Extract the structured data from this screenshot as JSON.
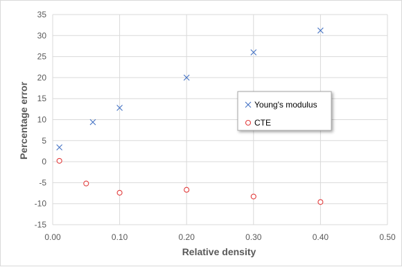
{
  "chart_data": {
    "type": "scatter",
    "xlabel": "Relative density",
    "ylabel": "Percentage error",
    "xlim": [
      0.0,
      0.5
    ],
    "ylim": [
      -15,
      35
    ],
    "x_ticks": [
      0.0,
      0.1,
      0.2,
      0.3,
      0.4,
      0.5
    ],
    "x_tick_labels": [
      "0.00",
      "0.10",
      "0.20",
      "0.30",
      "0.40",
      "0.50"
    ],
    "y_ticks": [
      -15,
      -10,
      -5,
      0,
      5,
      10,
      15,
      20,
      25,
      30,
      35
    ],
    "y_tick_labels": [
      "-15",
      "-10",
      "-5",
      "0",
      "5",
      "10",
      "15",
      "20",
      "25",
      "30",
      "35"
    ],
    "grid": true,
    "legend_position": "right",
    "series": [
      {
        "name": "Young's modulus",
        "marker": "x",
        "color": "#4472c4",
        "x": [
          0.01,
          0.06,
          0.1,
          0.2,
          0.3,
          0.4
        ],
        "y": [
          3.4,
          9.4,
          12.8,
          20.0,
          26.0,
          31.2
        ]
      },
      {
        "name": "CTE",
        "marker": "circle",
        "color": "#e23d3d",
        "x": [
          0.01,
          0.05,
          0.1,
          0.2,
          0.3,
          0.4
        ],
        "y": [
          0.2,
          -5.2,
          -7.4,
          -6.7,
          -8.3,
          -9.6
        ]
      }
    ]
  }
}
